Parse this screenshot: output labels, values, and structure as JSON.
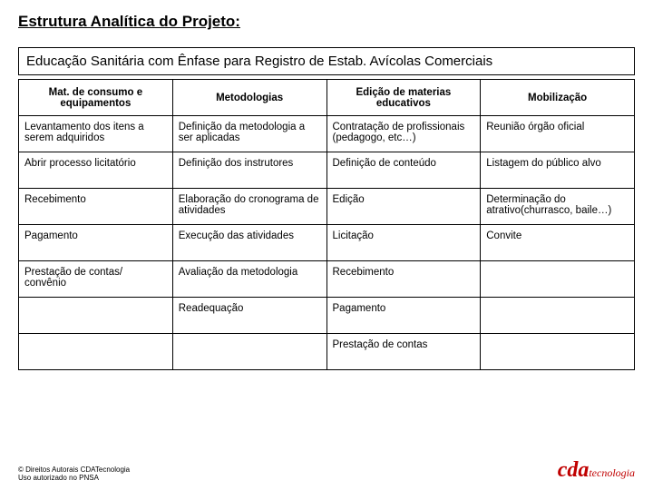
{
  "title": "Estrutura Analítica do Projeto:",
  "subtitle": "Educação Sanitária com Ênfase para Registro de Estab. Avícolas Comerciais",
  "columns": [
    "Mat. de consumo e equipamentos",
    "Metodologias",
    "Edição de materias educativos",
    "Mobilização"
  ],
  "rows": [
    [
      "Levantamento dos itens a serem adquiridos",
      "Definição da metodologia a ser aplicadas",
      "Contratação de profissionais (pedagogo, etc…)",
      "Reunião órgão oficial"
    ],
    [
      "Abrir processo licitatório",
      "Definição dos instrutores",
      "Definição de conteúdo",
      "Listagem do público alvo"
    ],
    [
      "Recebimento",
      "Elaboração do cronograma de atividades",
      "Edição",
      "Determinação do atrativo(churrasco, baile…)"
    ],
    [
      "Pagamento",
      "Execução das atividades",
      "Licitação",
      "Convite"
    ],
    [
      "Prestação de contas/ convênio",
      "Avaliação da metodologia",
      "Recebimento",
      ""
    ],
    [
      "",
      "Readequação",
      "Pagamento",
      ""
    ],
    [
      "",
      "",
      "Prestação de contas",
      ""
    ]
  ],
  "footer": {
    "copyright_line1": "© Direitos Autorais CDATecnologia",
    "copyright_line2": "Uso autorizado no PNSA",
    "logo_main": "cda",
    "logo_sub": "tecnologia"
  },
  "colors": {
    "text": "#000000",
    "border": "#000000",
    "background": "#ffffff",
    "logo": "#c00000"
  }
}
